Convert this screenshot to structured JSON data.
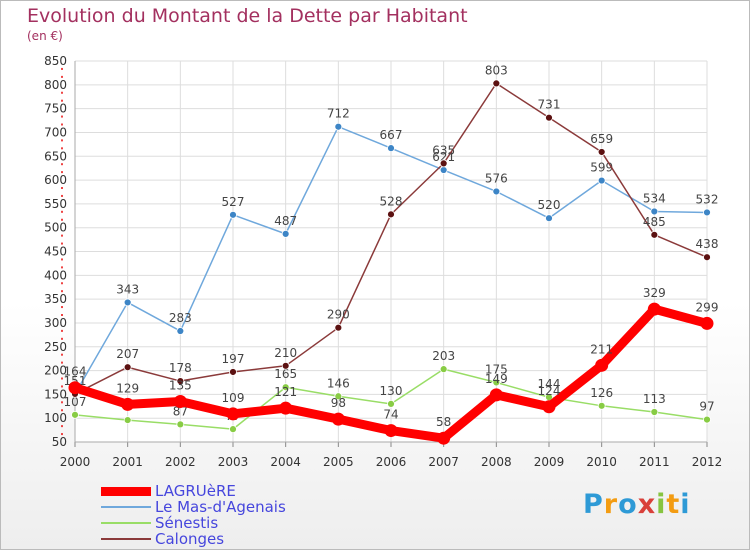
{
  "title": "Evolution du Montant de la Dette par Habitant",
  "subtitle": "(en €)",
  "logo": {
    "letters": [
      "P",
      "r",
      "o",
      "x",
      "i",
      "t",
      "i"
    ],
    "colors": [
      "#2e9ad6",
      "#f39c12",
      "#2e9ad6",
      "#d9403a",
      "#86c440",
      "#f39c12",
      "#2e9ad6"
    ]
  },
  "chart_data": {
    "type": "line",
    "x": [
      "2000",
      "2001",
      "2002",
      "2003",
      "2004",
      "2005",
      "2006",
      "2007",
      "2008",
      "2009",
      "2010",
      "2011",
      "2012"
    ],
    "ylim": [
      50,
      850
    ],
    "yticks": [
      50,
      100,
      150,
      200,
      250,
      300,
      350,
      400,
      450,
      500,
      550,
      600,
      650,
      700,
      750,
      800,
      850
    ],
    "grid": true,
    "legend_position": "bottom-left",
    "series": [
      {
        "name": "Sénestis",
        "color": "#99dd66",
        "marker": "#88cc44",
        "width": 1.5,
        "radius": 3.5,
        "values": [
          107,
          96,
          87,
          77,
          165,
          146,
          130,
          203,
          175,
          144,
          126,
          113,
          97
        ],
        "labels": [
          "107",
          "",
          "87",
          "77",
          "165",
          "146",
          "130",
          "203",
          "175",
          "144",
          "126",
          "113",
          "97"
        ]
      },
      {
        "name": "Le Mas-d'Agenais",
        "color": "#6fa8dc",
        "marker": "#3d85c6",
        "width": 1.5,
        "radius": 3.5,
        "values": [
          151,
          343,
          283,
          527,
          487,
          712,
          667,
          621,
          576,
          520,
          599,
          534,
          532
        ],
        "labels": [
          "151",
          "343",
          "283",
          "527",
          "487",
          "712",
          "667",
          "621",
          "576",
          "520",
          "599",
          "534",
          "532"
        ]
      },
      {
        "name": "Calonges",
        "color": "#8b3a3a",
        "marker": "#5c1111",
        "width": 1.5,
        "radius": 3.5,
        "values": [
          151,
          207,
          178,
          197,
          210,
          290,
          528,
          635,
          803,
          731,
          659,
          485,
          438
        ],
        "labels": [
          "",
          "207",
          "178",
          "197",
          "210",
          "290",
          "528",
          "635",
          "803",
          "731",
          "659",
          "485",
          "438"
        ]
      },
      {
        "name": "LAGRUèRE",
        "color": "#ff0000",
        "marker": "#ff0000",
        "width": 9,
        "radius": 6.5,
        "values": [
          164,
          129,
          135,
          109,
          121,
          98,
          74,
          58,
          149,
          124,
          211,
          329,
          299
        ],
        "labels": [
          "164",
          "129",
          "135",
          "109",
          "121",
          "98",
          "74",
          "58",
          "149",
          "124",
          "211",
          "329",
          "299"
        ]
      }
    ],
    "legend_order": [
      "LAGRUèRE",
      "Le Mas-d'Agenais",
      "Sénestis",
      "Calonges"
    ]
  }
}
